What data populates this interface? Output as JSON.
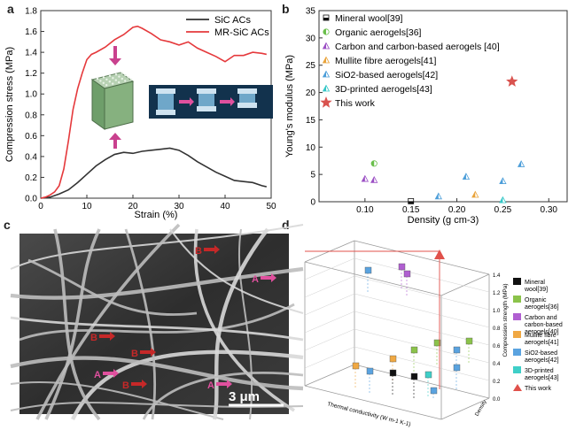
{
  "panels": {
    "a": "a",
    "b": "b",
    "c": "c",
    "d": "d"
  },
  "chart_data": [
    {
      "panel": "a",
      "type": "line",
      "xlabel": "Strain (%)",
      "ylabel": "Compression stress (MPa)",
      "xlim": [
        0,
        50
      ],
      "ylim": [
        0,
        1.8
      ],
      "xticks": [
        0,
        10,
        20,
        30,
        40,
        50
      ],
      "yticks": [
        0.0,
        0.2,
        0.4,
        0.6,
        0.8,
        1.0,
        1.2,
        1.4,
        1.6,
        1.8
      ],
      "legend_position": "top-right",
      "series": [
        {
          "name": "SiC ACs",
          "color": "#333333",
          "x": [
            0,
            2,
            4,
            6,
            8,
            10,
            12,
            14,
            16,
            18,
            20,
            22,
            24,
            26,
            28,
            30,
            32,
            34,
            36,
            38,
            40,
            42,
            44,
            46,
            48,
            49
          ],
          "y": [
            0,
            0.01,
            0.04,
            0.08,
            0.15,
            0.23,
            0.31,
            0.37,
            0.42,
            0.44,
            0.43,
            0.45,
            0.46,
            0.47,
            0.48,
            0.46,
            0.41,
            0.35,
            0.3,
            0.25,
            0.21,
            0.17,
            0.16,
            0.15,
            0.12,
            0.11
          ]
        },
        {
          "name": "MR-SiC ACs",
          "color": "#e5393c",
          "x": [
            0,
            1,
            2,
            3,
            4,
            5,
            6,
            7,
            8,
            9,
            10,
            11,
            12,
            14,
            16,
            18,
            20,
            21,
            22,
            24,
            26,
            28,
            30,
            32,
            34,
            36,
            38,
            40,
            42,
            44,
            46,
            48,
            49
          ],
          "y": [
            0,
            0.01,
            0.03,
            0.06,
            0.12,
            0.28,
            0.55,
            0.85,
            1.05,
            1.2,
            1.33,
            1.38,
            1.4,
            1.45,
            1.52,
            1.57,
            1.64,
            1.65,
            1.63,
            1.58,
            1.52,
            1.5,
            1.47,
            1.5,
            1.44,
            1.4,
            1.36,
            1.31,
            1.37,
            1.37,
            1.4,
            1.39,
            1.38
          ]
        }
      ]
    },
    {
      "panel": "b",
      "type": "scatter",
      "xlabel": "Density (g cm-3)",
      "ylabel": "Young's modulus (MPa)",
      "xlim": [
        0.05,
        0.32
      ],
      "ylim": [
        0,
        35
      ],
      "xticks": [
        0.1,
        0.15,
        0.2,
        0.25,
        0.3
      ],
      "yticks": [
        0,
        5,
        10,
        15,
        20,
        25,
        30,
        35
      ],
      "legend_position": "top-left",
      "series": [
        {
          "name": "Mineral wool[39]",
          "color": "#111111",
          "marker": "half-square",
          "x": [
            0.15
          ],
          "y": [
            0.1
          ]
        },
        {
          "name": "Organic aerogels[36]",
          "color": "#6abf4b",
          "marker": "half-circle",
          "x": [
            0.11
          ],
          "y": [
            7.0
          ]
        },
        {
          "name": "Carbon and carbon-based aerogels [40]",
          "color": "#9b4fc4",
          "marker": "half-triangle",
          "x": [
            0.1,
            0.11
          ],
          "y": [
            4.2,
            4.0
          ]
        },
        {
          "name": "Mullite fibre aerogels[41]",
          "color": "#e9a33a",
          "marker": "half-triangle",
          "x": [
            0.22
          ],
          "y": [
            1.3
          ]
        },
        {
          "name": "SiO2-based aerogels[42]",
          "color": "#4c9ed9",
          "marker": "half-triangle",
          "x": [
            0.18,
            0.21,
            0.25,
            0.27
          ],
          "y": [
            1.0,
            4.6,
            3.8,
            6.9
          ]
        },
        {
          "name": "3D-printed aerogels[43]",
          "color": "#34c7c7",
          "marker": "half-triangle",
          "x": [
            0.25
          ],
          "y": [
            0.3
          ]
        },
        {
          "name": "This work",
          "color": "#d9534f",
          "marker": "star",
          "x": [
            0.26
          ],
          "y": [
            22.0
          ]
        }
      ]
    }
  ],
  "panel_c": {
    "scale_label": "3 μm",
    "markers": [
      "B",
      "A",
      "B",
      "B",
      "A",
      "B",
      "A"
    ]
  },
  "panel_d": {
    "zlabel": "Compression strength (MPa)",
    "xlabel": "Thermal conductivity (W m-1 K-1)",
    "ylabel": "Density",
    "zticks": [
      "1.4",
      "1.2",
      "1.0",
      "0.8",
      "0.6",
      "0.4",
      "0.2",
      "0.0"
    ],
    "legend": [
      {
        "label": "Mineral wool[39]",
        "color": "#111111",
        "shape": "square"
      },
      {
        "label": "Organic aerogels[36]",
        "color": "#8bc34a",
        "shape": "square"
      },
      {
        "label": "Carbon and carbon-based aerogels[40]",
        "color": "#b05fd1",
        "shape": "square"
      },
      {
        "label": "Mullite fibre aerogels[41]",
        "color": "#f0a843",
        "shape": "square"
      },
      {
        "label": "SiO2-based aerogels[42]",
        "color": "#5aa3e0",
        "shape": "square"
      },
      {
        "label": "3D-printed aerogels[43]",
        "color": "#3fcfc8",
        "shape": "square"
      },
      {
        "label": "This work",
        "color": "#e0514b",
        "shape": "triangle"
      }
    ]
  }
}
